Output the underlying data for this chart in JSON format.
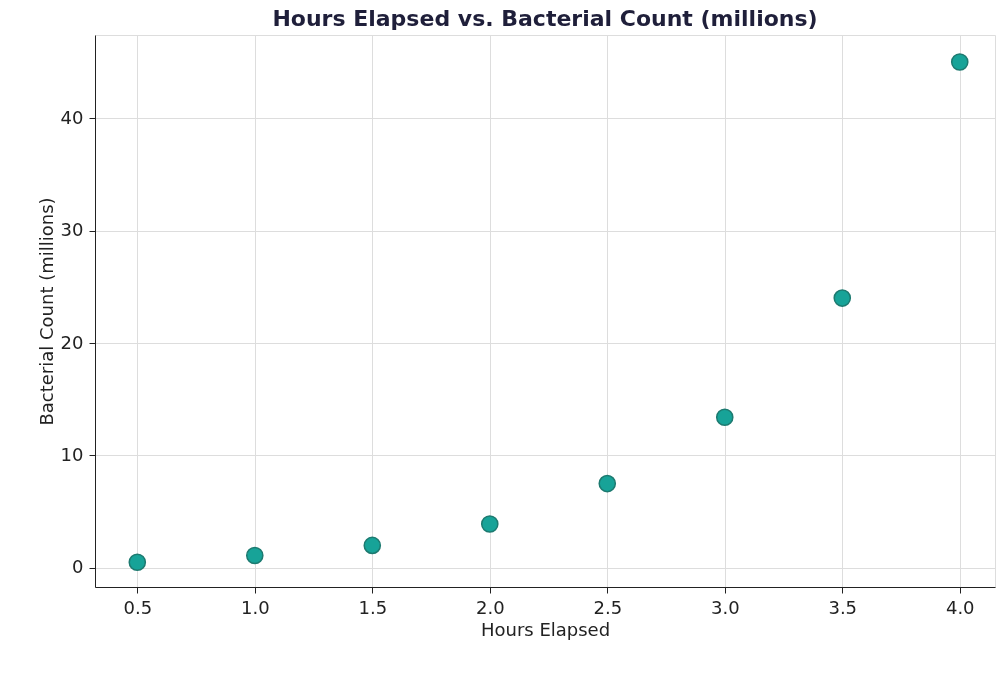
{
  "chart_data": {
    "type": "scatter",
    "title": "Hours Elapsed vs. Bacterial Count (millions)",
    "xlabel": "Hours Elapsed",
    "ylabel": "Bacterial Count (millions)",
    "x": [
      0.5,
      1.0,
      1.5,
      2.0,
      2.5,
      3.0,
      3.5,
      4.0
    ],
    "series": [
      {
        "color": "#17a398",
        "values": [
          0.5,
          1.1,
          2.0,
          3.9,
          7.5,
          13.4,
          24.0,
          45.0
        ]
      }
    ],
    "xlim": [
      0.32,
      4.15
    ],
    "ylim": [
      -1.7,
      47.4
    ],
    "xticks": [
      0.5,
      {
        "value": 1,
        "label": "1.0"
      },
      1.5,
      {
        "value": 2,
        "label": "2.0"
      },
      2.5,
      {
        "value": 3,
        "label": "3.0"
      },
      3.5,
      {
        "value": 4,
        "label": "4.0"
      }
    ],
    "yticks": [
      0,
      10,
      20,
      30,
      40
    ],
    "grid": true,
    "marker": "circle"
  }
}
